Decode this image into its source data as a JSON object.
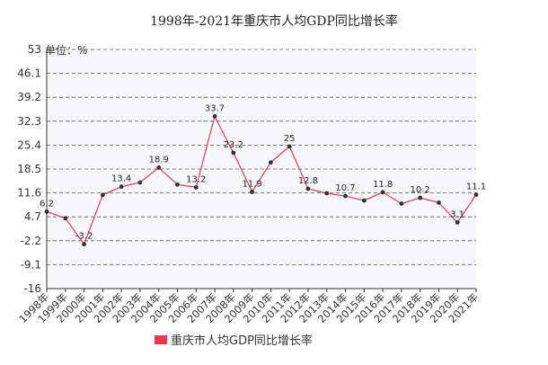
{
  "chart_data": {
    "type": "line",
    "title": "1998年-2021年重庆市人均GDP同比增长率",
    "y_unit_label": "单位：%",
    "ylim": [
      -16,
      53
    ],
    "y_ticks": [
      "53",
      "46.1",
      "39.2",
      "32.3",
      "25.4",
      "18.5",
      "11.6",
      "4.7",
      "-2.2",
      "-9.1",
      "-16"
    ],
    "categories": [
      "1998年",
      "1999年",
      "2000年",
      "2001年",
      "2002年",
      "2003年",
      "2004年",
      "2005年",
      "2006年",
      "2007年",
      "2008年",
      "2009年",
      "2010年",
      "2011年",
      "2012年",
      "2013年",
      "2014年",
      "2015年",
      "2016年",
      "2017年",
      "2018年",
      "2019年",
      "2020年",
      "2021年"
    ],
    "series": [
      {
        "name": "重庆市人均GDP同比增长率",
        "color": "#e8394a",
        "values": [
          6.2,
          4.3,
          -3.2,
          11.0,
          13.4,
          14.6,
          18.9,
          14.0,
          13.2,
          33.7,
          23.2,
          11.9,
          20.4,
          25.0,
          12.8,
          11.5,
          10.7,
          9.4,
          11.8,
          8.5,
          10.2,
          8.8,
          3.1,
          11.1
        ]
      }
    ],
    "data_labels": [
      {
        "index": 0,
        "text": "6.2"
      },
      {
        "index": 2,
        "text": "-3.2"
      },
      {
        "index": 4,
        "text": "13.4"
      },
      {
        "index": 6,
        "text": "18.9"
      },
      {
        "index": 8,
        "text": "13.2"
      },
      {
        "index": 9,
        "text": "33.7"
      },
      {
        "index": 10,
        "text": "23.2"
      },
      {
        "index": 11,
        "text": "11.9"
      },
      {
        "index": 13,
        "text": "25"
      },
      {
        "index": 14,
        "text": "12.8"
      },
      {
        "index": 16,
        "text": "10.7"
      },
      {
        "index": 18,
        "text": "11.8"
      },
      {
        "index": 20,
        "text": "10.2"
      },
      {
        "index": 22,
        "text": "3.1"
      },
      {
        "index": 23,
        "text": "11.1"
      }
    ],
    "grid": true,
    "legend_position": "bottom",
    "colors": {
      "plot_background": "#f7f7fd",
      "grid": "#555555",
      "marker": "#333333"
    }
  }
}
